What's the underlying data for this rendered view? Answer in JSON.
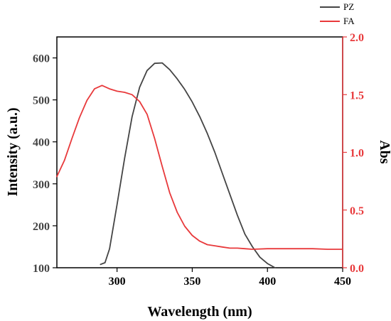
{
  "chart_data": {
    "type": "line",
    "title": "",
    "xlabel": "Wavelength (nm)",
    "ylabel_left": "Intensity (a.u.)",
    "ylabel_right": "Abs",
    "xlim": [
      260,
      450
    ],
    "ylim_left": [
      100,
      650
    ],
    "ylim_right": [
      0.0,
      2.0
    ],
    "x_ticks": [
      300,
      350,
      400,
      450
    ],
    "y_left_ticks": [
      100,
      200,
      300,
      400,
      500,
      600
    ],
    "y_right_ticks": [
      "0.0",
      "0.5",
      "1.0",
      "1.5",
      "2.0"
    ],
    "legend_position": "top-right",
    "series": [
      {
        "name": "PZ",
        "axis": "left",
        "color": "#444444",
        "x": [
          289,
          292,
          295,
          300,
          305,
          310,
          315,
          320,
          325,
          330,
          335,
          340,
          345,
          350,
          355,
          360,
          365,
          370,
          375,
          380,
          385,
          390,
          395,
          400,
          405
        ],
        "y": [
          108,
          112,
          145,
          250,
          360,
          460,
          530,
          570,
          587,
          588,
          572,
          550,
          525,
          495,
          460,
          420,
          375,
          325,
          275,
          225,
          180,
          150,
          125,
          110,
          100
        ]
      },
      {
        "name": "FA",
        "axis": "right",
        "color": "#e8393b",
        "x": [
          260,
          265,
          270,
          275,
          280,
          285,
          290,
          295,
          300,
          305,
          310,
          315,
          320,
          325,
          330,
          335,
          340,
          345,
          350,
          355,
          360,
          365,
          370,
          375,
          380,
          385,
          390,
          400,
          410,
          420,
          430,
          440,
          450
        ],
        "y": [
          0.79,
          0.93,
          1.12,
          1.3,
          1.45,
          1.55,
          1.58,
          1.55,
          1.53,
          1.52,
          1.5,
          1.44,
          1.33,
          1.12,
          0.88,
          0.65,
          0.48,
          0.36,
          0.28,
          0.23,
          0.2,
          0.19,
          0.18,
          0.17,
          0.17,
          0.165,
          0.16,
          0.165,
          0.165,
          0.165,
          0.165,
          0.16,
          0.16
        ]
      }
    ]
  }
}
